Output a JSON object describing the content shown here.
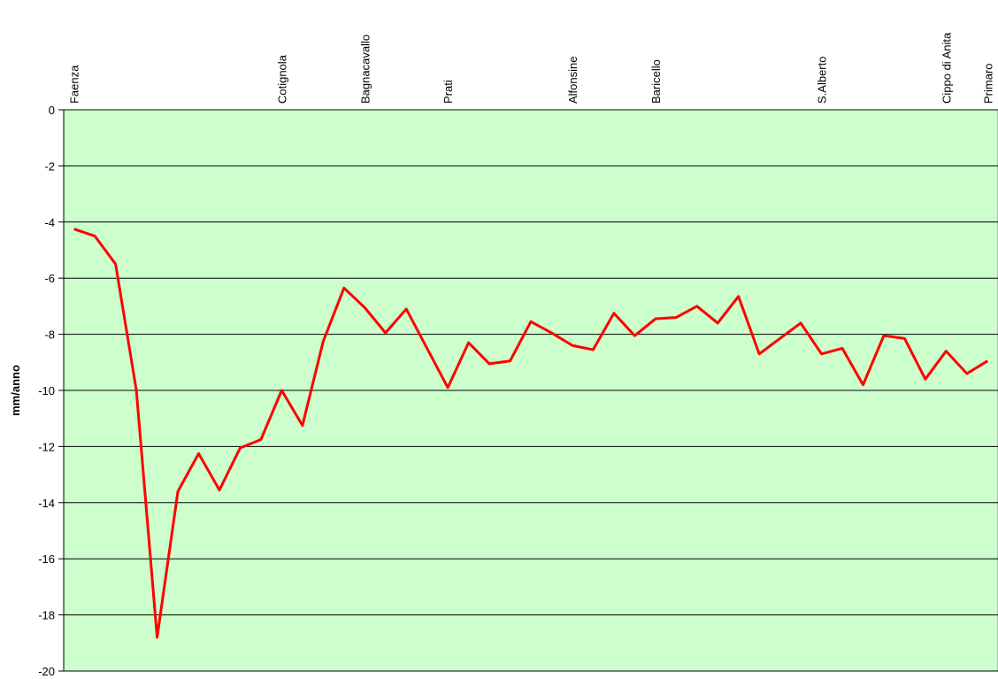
{
  "chart_data": {
    "type": "line",
    "y_label": "mm/anno",
    "categories": [
      "Faenza",
      null,
      null,
      null,
      null,
      null,
      null,
      null,
      null,
      null,
      "Cotignola",
      null,
      null,
      null,
      "Bagnacavallo",
      null,
      null,
      null,
      "Prati",
      null,
      null,
      null,
      null,
      null,
      "Alfonsine",
      null,
      null,
      null,
      "Baricello",
      null,
      null,
      null,
      null,
      null,
      null,
      null,
      "S.Alberto",
      null,
      null,
      null,
      null,
      null,
      "Cippo di Anita",
      null,
      "Primaro"
    ],
    "series": [
      {
        "name": "mm/anno",
        "color": "#ff0000",
        "values": [
          -4.25,
          -4.5,
          -5.5,
          -10,
          -18.8,
          -13.6,
          -12.25,
          -13.55,
          -12.05,
          -11.75,
          -10,
          -11.25,
          -8.25,
          -6.35,
          -7.05,
          -7.95,
          -7.1,
          -8.5,
          -9.9,
          -8.3,
          -9.05,
          -8.95,
          -7.55,
          -7.95,
          -8.4,
          -8.55,
          -7.25,
          -8.05,
          -7.45,
          -7.4,
          -7.0,
          -7.6,
          -6.65,
          -8.7,
          -8.15,
          -7.6,
          -8.7,
          -8.5,
          -9.8,
          -8.05,
          -8.15,
          -9.6,
          -8.6,
          -9.4,
          -8.95
        ]
      }
    ],
    "ylim": [
      -20,
      0
    ],
    "yticks": [
      0,
      -2,
      -4,
      -6,
      -8,
      -10,
      -12,
      -14,
      -16,
      -18,
      -20
    ],
    "grid": true,
    "plot_background": "#ccffcc"
  }
}
